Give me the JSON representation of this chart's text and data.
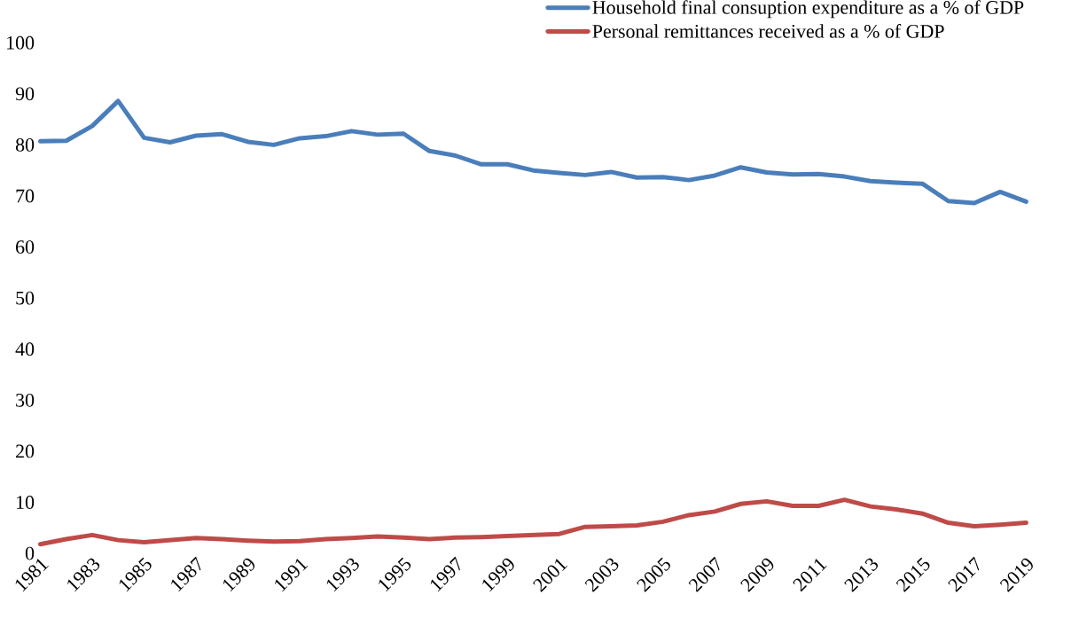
{
  "chart_data": {
    "type": "line",
    "categories": [
      "1981",
      null,
      "1983",
      null,
      "1985",
      null,
      "1987",
      null,
      "1989",
      null,
      "1991",
      null,
      "1993",
      null,
      "1995",
      null,
      "1997",
      null,
      "1999",
      null,
      "2001",
      null,
      "2003",
      null,
      "2005",
      null,
      "2007",
      null,
      "2009",
      null,
      "2011",
      null,
      "2013",
      null,
      "2015",
      null,
      "2017",
      null,
      "2019"
    ],
    "series": [
      {
        "name": "Household final consuption expenditure as a % of GDP",
        "color": "#4a7ebb",
        "values": [
          80.7,
          80.8,
          83.7,
          88.6,
          81.4,
          80.5,
          81.8,
          82.1,
          80.6,
          80.0,
          81.3,
          81.7,
          82.7,
          82.0,
          82.2,
          78.8,
          77.9,
          76.2,
          76.2,
          75.0,
          74.5,
          74.1,
          74.7,
          73.6,
          73.7,
          73.1,
          74.0,
          75.6,
          74.6,
          74.2,
          74.3,
          73.8,
          72.9,
          72.6,
          72.4,
          69.0,
          68.6,
          70.8,
          68.9
        ]
      },
      {
        "name": "Personal remittances received as a % of GDP",
        "color": "#be4b48",
        "values": [
          1.8,
          2.8,
          3.6,
          2.6,
          2.2,
          2.6,
          3.0,
          2.8,
          2.5,
          2.3,
          2.4,
          2.8,
          3.0,
          3.3,
          3.1,
          2.8,
          3.1,
          3.2,
          3.4,
          3.6,
          3.8,
          5.2,
          5.3,
          5.5,
          6.2,
          7.5,
          8.2,
          9.7,
          10.2,
          9.3,
          9.3,
          10.5,
          9.2,
          8.6,
          7.8,
          6.0,
          5.3,
          5.6,
          6.0
        ]
      }
    ],
    "ylim": [
      0,
      100
    ],
    "yticks": [
      0,
      10,
      20,
      30,
      40,
      50,
      60,
      70,
      80,
      90,
      100
    ],
    "legend": "top right",
    "grid": false
  }
}
